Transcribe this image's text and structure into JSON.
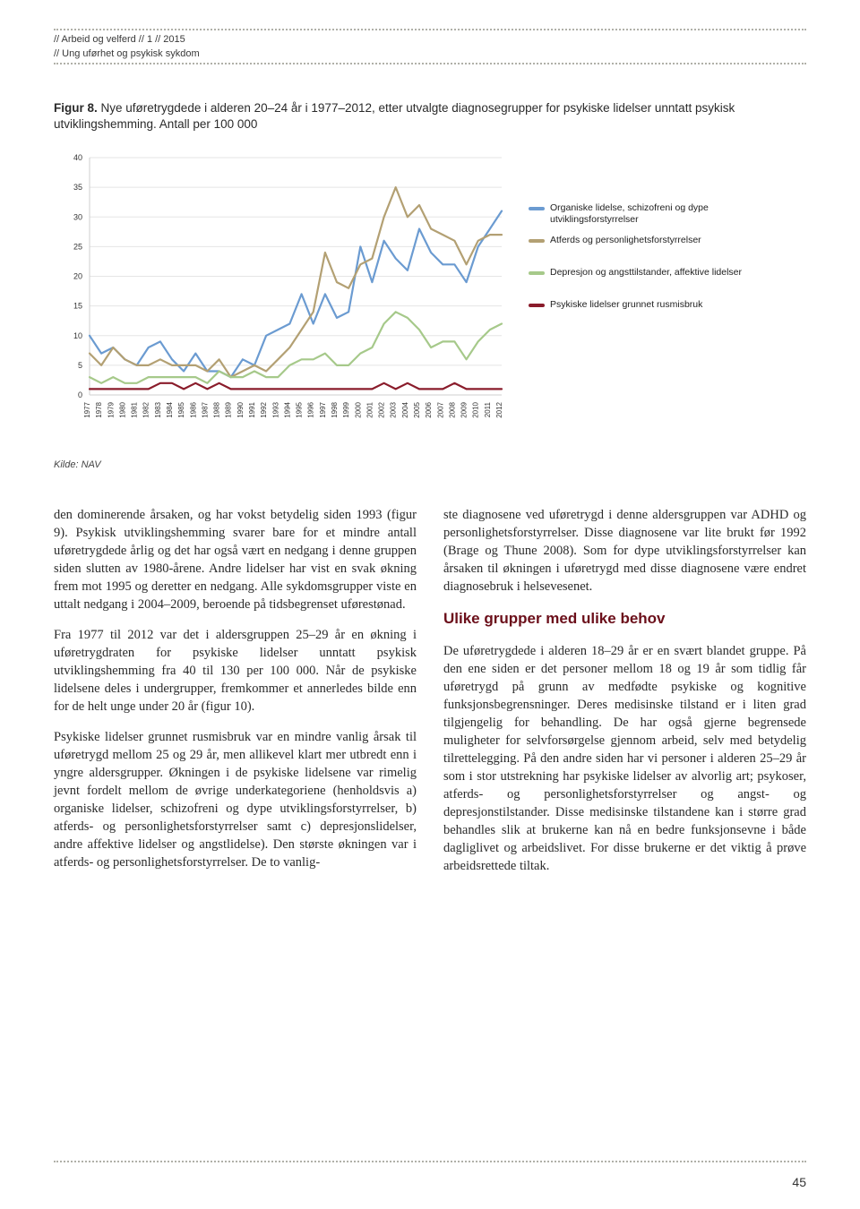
{
  "header": {
    "line1": "// Arbeid og velferd // 1 // 2015",
    "line2": "// Ung uførhet og psykisk sykdom"
  },
  "figure": {
    "label": "Figur 8.",
    "caption": "Nye uføretrygdede i alderen 20–24 år i 1977–2012, etter utvalgte diagnosegrupper for psykiske lidelser unntatt psykisk utviklingshemming. Antall per 100 000"
  },
  "chart": {
    "type": "line",
    "ylim": [
      0,
      40
    ],
    "ytick_step": 5,
    "xlim": [
      1977,
      2012
    ],
    "years": [
      1977,
      1978,
      1979,
      1980,
      1981,
      1982,
      1983,
      1984,
      1985,
      1986,
      1987,
      1988,
      1989,
      1990,
      1991,
      1992,
      1993,
      1994,
      1995,
      1996,
      1997,
      1998,
      1999,
      2000,
      2001,
      2002,
      2003,
      2004,
      2005,
      2006,
      2007,
      2008,
      2009,
      2010,
      2011,
      2012
    ],
    "background_color": "#ffffff",
    "grid_color": "#e5e5e5",
    "axis_color": "#cfcfcf",
    "line_width": 2.2,
    "series": [
      {
        "name": "organiske",
        "label": "Organiske lidelse, schizofreni og dype utviklingsforstyrrelser",
        "color": "#6b9bd1",
        "values": [
          10,
          7,
          8,
          6,
          5,
          8,
          9,
          6,
          4,
          7,
          4,
          4,
          3,
          6,
          5,
          10,
          11,
          12,
          17,
          12,
          17,
          13,
          14,
          25,
          19,
          26,
          23,
          21,
          28,
          24,
          22,
          22,
          19,
          25,
          28,
          31
        ]
      },
      {
        "name": "atferds",
        "label": "Atferds og personlighetsforstyrrelser",
        "color": "#b3a073",
        "values": [
          7,
          5,
          8,
          6,
          5,
          5,
          6,
          5,
          5,
          5,
          4,
          6,
          3,
          4,
          5,
          4,
          6,
          8,
          11,
          14,
          24,
          19,
          18,
          22,
          23,
          30,
          35,
          30,
          32,
          28,
          27,
          26,
          22,
          26,
          27,
          27
        ]
      },
      {
        "name": "depresjon",
        "label": "Depresjon og angsttilstander, affektive lidelser",
        "color": "#a6c98a",
        "values": [
          3,
          2,
          3,
          2,
          2,
          3,
          3,
          3,
          3,
          3,
          2,
          4,
          3,
          3,
          4,
          3,
          3,
          5,
          6,
          6,
          7,
          5,
          5,
          7,
          8,
          12,
          14,
          13,
          11,
          8,
          9,
          9,
          6,
          9,
          11,
          12
        ]
      },
      {
        "name": "rusmisbruk",
        "label": "Psykiske lidelser grunnet rusmisbruk",
        "color": "#8a1c2b",
        "values": [
          1,
          1,
          1,
          1,
          1,
          1,
          2,
          2,
          1,
          2,
          1,
          2,
          1,
          1,
          1,
          1,
          1,
          1,
          1,
          1,
          1,
          1,
          1,
          1,
          1,
          2,
          1,
          2,
          1,
          1,
          1,
          2,
          1,
          1,
          1,
          1
        ]
      }
    ],
    "label_fontsize": 10,
    "tick_fontsize": 9
  },
  "source": "Kilde: NAV",
  "body": {
    "left": {
      "p1": "den dominerende årsaken, og har vokst betydelig siden 1993 (figur 9). Psykisk utviklingshemming svarer bare for et mindre antall uføretrygdede årlig og det har også vært en nedgang i denne gruppen siden slutten av 1980-årene. Andre lidelser har vist en svak økning frem mot 1995 og deretter en nedgang. Alle sykdomsgrupper viste en uttalt nedgang i 2004–2009, beroende på tidsbegrenset uførestønad.",
      "p2": "Fra 1977 til 2012 var det i aldersgruppen 25–29 år en økning i uføretrygdraten for psykiske lidelser unntatt psykisk utviklingshemming fra 40 til 130 per 100 000. Når de psykiske lidelsene deles i undergrupper, fremkommer et annerledes bilde enn for de helt unge under 20 år (figur 10).",
      "p3": "Psykiske lidelser grunnet rusmisbruk var en mindre vanlig årsak til uføretrygd mellom 25 og 29 år, men allikevel klart mer utbredt enn i yngre aldersgrupper. Økningen i de psykiske lidelsene var rimelig jevnt fordelt mellom de øvrige underkategoriene (henholdsvis a) organiske lidelser, schizofreni og dype utviklingsforstyrrelser, b) atferds- og personlighetsforstyrrelser samt c) depresjonslidelser, andre affektive lidelser og angstlidelse). Den største økningen var i atferds- og personlighetsforstyrrelser. De to vanlig-"
    },
    "right": {
      "p1": "ste diagnosene ved uføretrygd i denne aldersgruppen var ADHD og personlighetsforstyrrelser. Disse diagnosene var lite brukt før 1992 (Brage og Thune 2008). Som for dype utviklingsforstyrrelser kan årsaken til økningen i uføretrygd med disse diagnosene være endret diagnosebruk i helsevesenet.",
      "h1": "Ulike grupper med ulike behov",
      "p2": "De uføretrygdede i alderen 18–29 år er en svært blandet gruppe. På den ene siden er det personer mellom 18 og 19 år som tidlig får uføretrygd på grunn av medfødte psykiske og kognitive funksjonsbegrensninger. Deres medisinske tilstand er i liten grad tilgjengelig for behandling. De har også gjerne begrensede muligheter for selvforsørgelse gjennom arbeid, selv med betydelig tilrettelegging. På den andre siden har vi personer i alderen 25–29 år som i stor utstrekning har psykiske lidelser av alvorlig art; psykoser, atferds- og personlighetsforstyrrelser og angst- og depresjonstilstander. Disse medisinske tilstandene kan i større grad behandles slik at brukerne kan nå en bedre funksjonsevne i både dagliglivet og arbeidslivet. For disse brukerne er det viktig å prøve arbeidsrettede tiltak."
    }
  },
  "page_number": "45"
}
